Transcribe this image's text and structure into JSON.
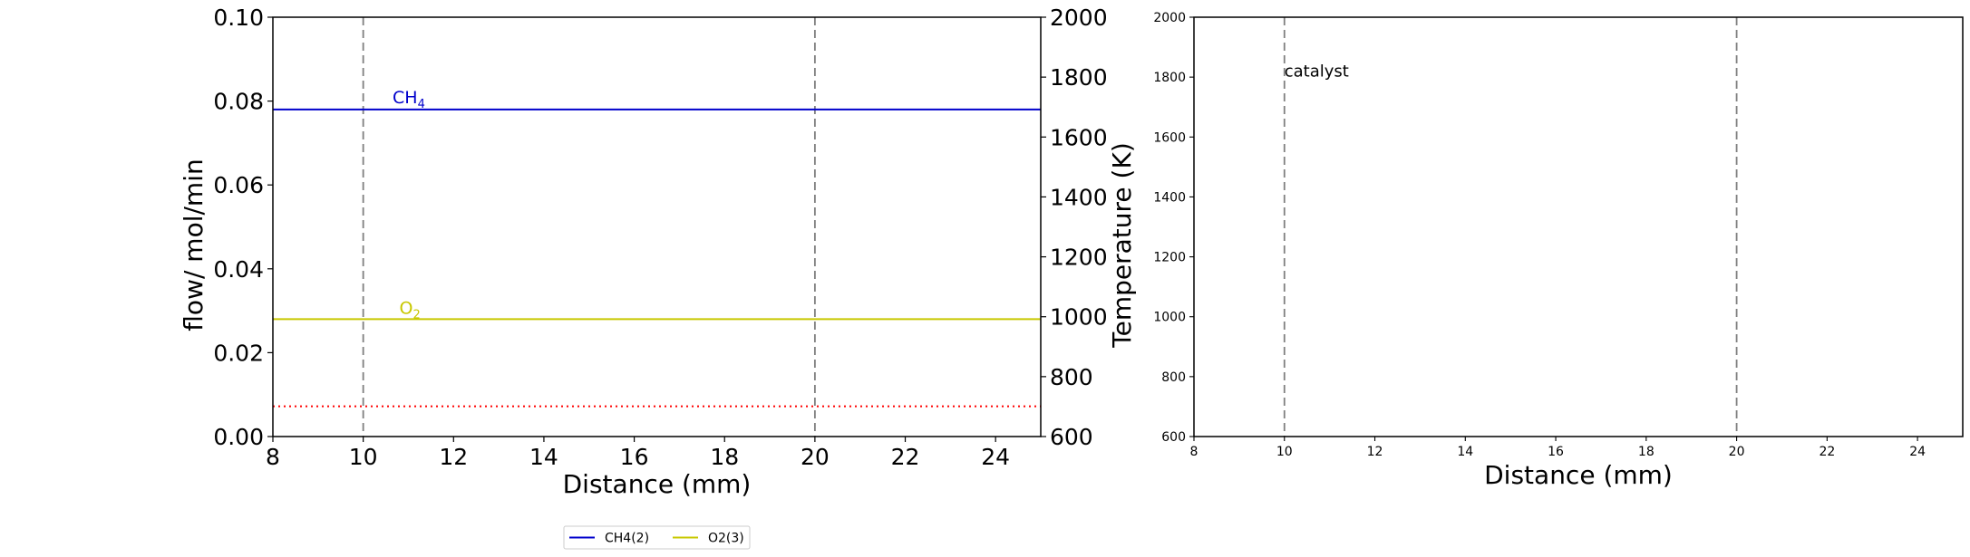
{
  "chart_data": [
    {
      "type": "line",
      "xlabel": "Distance (mm)",
      "ylabel": "flow/ mol/min",
      "y2label": "Temperature (K)",
      "xlim": [
        8,
        25
      ],
      "ylim": [
        0.0,
        0.1
      ],
      "y2lim": [
        600,
        2000
      ],
      "x_ticks": [
        "8",
        "10",
        "12",
        "14",
        "16",
        "18",
        "20",
        "22",
        "24"
      ],
      "y_ticks": [
        "0.00",
        "0.02",
        "0.04",
        "0.06",
        "0.08",
        "0.10"
      ],
      "y2_ticks": [
        "600",
        "800",
        "1000",
        "1200",
        "1400",
        "1600",
        "1800",
        "2000"
      ],
      "vlines": [
        10,
        20
      ],
      "series": [
        {
          "name": "CH4(2)",
          "color": "#0000cc",
          "x": [
            8,
            25
          ],
          "y": [
            0.078,
            0.078
          ],
          "label_base": "CH",
          "label_sub": "4",
          "label_x": 10.65,
          "label_y": 0.0795
        },
        {
          "name": "O2(3)",
          "color": "#c8c800",
          "x": [
            8,
            25
          ],
          "y": [
            0.028,
            0.028
          ],
          "label_base": "O",
          "label_sub": "2",
          "label_x": 10.8,
          "label_y": 0.0293
        },
        {
          "color": "#ff0000",
          "dashed": true,
          "axis": "y2",
          "x": [
            8,
            25
          ],
          "y": [
            701,
            701
          ]
        }
      ],
      "legend": {
        "placement": "bottom-center",
        "entries": [
          {
            "label": "CH4(2)",
            "color": "#0000cc"
          },
          {
            "label": "O2(3)",
            "color": "#c8c800"
          }
        ]
      }
    },
    {
      "type": "line",
      "xlabel": "Distance (mm)",
      "xlim": [
        8,
        25
      ],
      "ylim": [
        600,
        2000
      ],
      "x_ticks": [
        "8",
        "10",
        "12",
        "14",
        "16",
        "18",
        "20",
        "22",
        "24"
      ],
      "y_ticks": [
        "600",
        "800",
        "1000",
        "1200",
        "1400",
        "1600",
        "1800",
        "2000"
      ],
      "vlines": [
        10,
        20
      ],
      "annotation": {
        "text": "catalyst",
        "x": 10.0,
        "y": 1820
      },
      "series": []
    }
  ]
}
